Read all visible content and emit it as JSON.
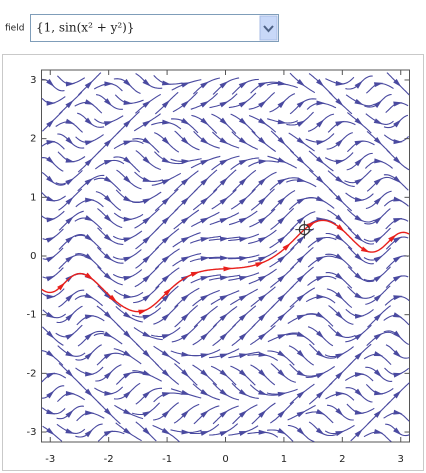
{
  "control": {
    "label": "field",
    "value": "{1, sin(x² + y²)}"
  },
  "chart_data": {
    "type": "streamplot",
    "xlim": [
      -3.15,
      3.15
    ],
    "ylim": [
      -3.17,
      3.17
    ],
    "xticks": [
      -3,
      -2,
      -1,
      0,
      1,
      2,
      3
    ],
    "yticks": [
      -3,
      -2,
      -1,
      0,
      1,
      2,
      3
    ],
    "color": "#4a4aa0",
    "highlight_color": "#e8201c",
    "highlight_point": {
      "x": 1.35,
      "y": 0.45
    }
  }
}
